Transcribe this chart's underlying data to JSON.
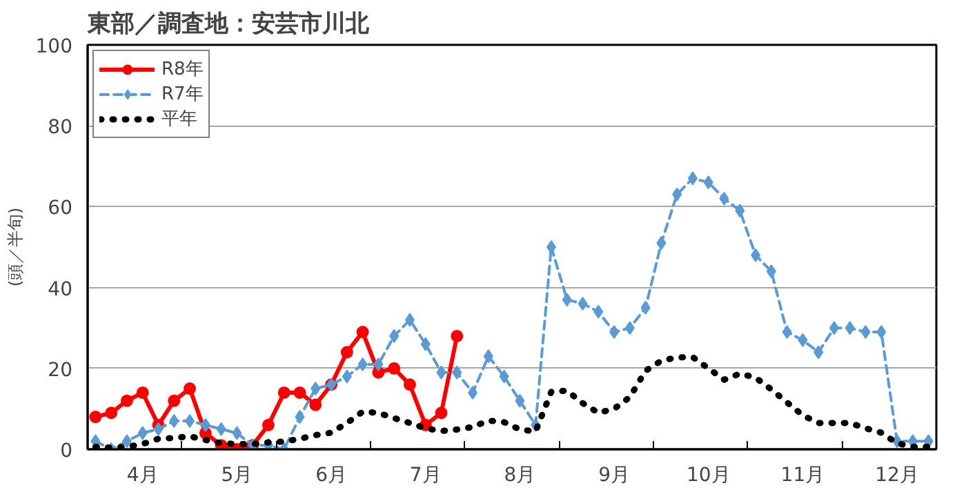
{
  "chart_data": {
    "type": "line",
    "title": "東部／調査地：安芸市川北",
    "ylabel": "(頭／半旬)",
    "categories": [
      null,
      null,
      null,
      "4月",
      null,
      null,
      null,
      null,
      null,
      "5月",
      null,
      null,
      null,
      null,
      null,
      "6月",
      null,
      null,
      null,
      null,
      null,
      "7月",
      null,
      null,
      null,
      null,
      null,
      "8月",
      null,
      null,
      null,
      null,
      null,
      "9月",
      null,
      null,
      null,
      null,
      null,
      "10月",
      null,
      null,
      null,
      null,
      null,
      "11月",
      null,
      null,
      null,
      null,
      null,
      "12月",
      null,
      null
    ],
    "ylim": [
      0,
      100
    ],
    "yticks": [
      0,
      20,
      40,
      60,
      80,
      100
    ],
    "grid": "y",
    "legend": "top left",
    "series": [
      {
        "name": "R8年",
        "color": "#ff0000",
        "marker": "circle",
        "line_style": "solid",
        "values": [
          8,
          9,
          12,
          14,
          6,
          12,
          15,
          4,
          1,
          0,
          1,
          6,
          14,
          14,
          11,
          16,
          24,
          29,
          19,
          20,
          16,
          6,
          9,
          28,
          null,
          null,
          null,
          null,
          null,
          null,
          null,
          null,
          null,
          null,
          null,
          null,
          null,
          null,
          null,
          null,
          null,
          null,
          null,
          null,
          null,
          null,
          null,
          null,
          null,
          null,
          null,
          null,
          null,
          null
        ]
      },
      {
        "name": "R7年",
        "color": "#5b9bd5",
        "marker": "diamond",
        "line_style": "dashed",
        "values": [
          2,
          0,
          2,
          4,
          5,
          7,
          7,
          6,
          5,
          4,
          1,
          1,
          0,
          8,
          15,
          16,
          18,
          21,
          21,
          28,
          32,
          26,
          19,
          19,
          14,
          23,
          18,
          12,
          6,
          50,
          37,
          36,
          34,
          29,
          30,
          35,
          51,
          63,
          67,
          66,
          62,
          59,
          48,
          44,
          29,
          27,
          24,
          30,
          30,
          29,
          29,
          2,
          2,
          2
        ]
      },
      {
        "name": "平年",
        "color": "#000000",
        "marker": "none",
        "line_style": "dotted",
        "values": [
          0.6,
          0.4,
          0.6,
          1.3,
          2.6,
          2.8,
          3.2,
          2.3,
          1.5,
          1.3,
          1.3,
          1.7,
          1.9,
          2.6,
          3.5,
          4.1,
          6.5,
          9.3,
          9,
          7.7,
          6.5,
          5.2,
          4.5,
          4.9,
          5.5,
          7.1,
          6.7,
          4.9,
          4.4,
          14.2,
          14.5,
          11.4,
          9,
          10,
          12.9,
          19.4,
          21.9,
          22.7,
          22.8,
          20,
          17.2,
          18.7,
          17.7,
          14.8,
          11.6,
          8.4,
          6.5,
          6.5,
          6.5,
          5.2,
          4.1,
          1.5,
          0.6,
          0.6
        ]
      }
    ]
  }
}
